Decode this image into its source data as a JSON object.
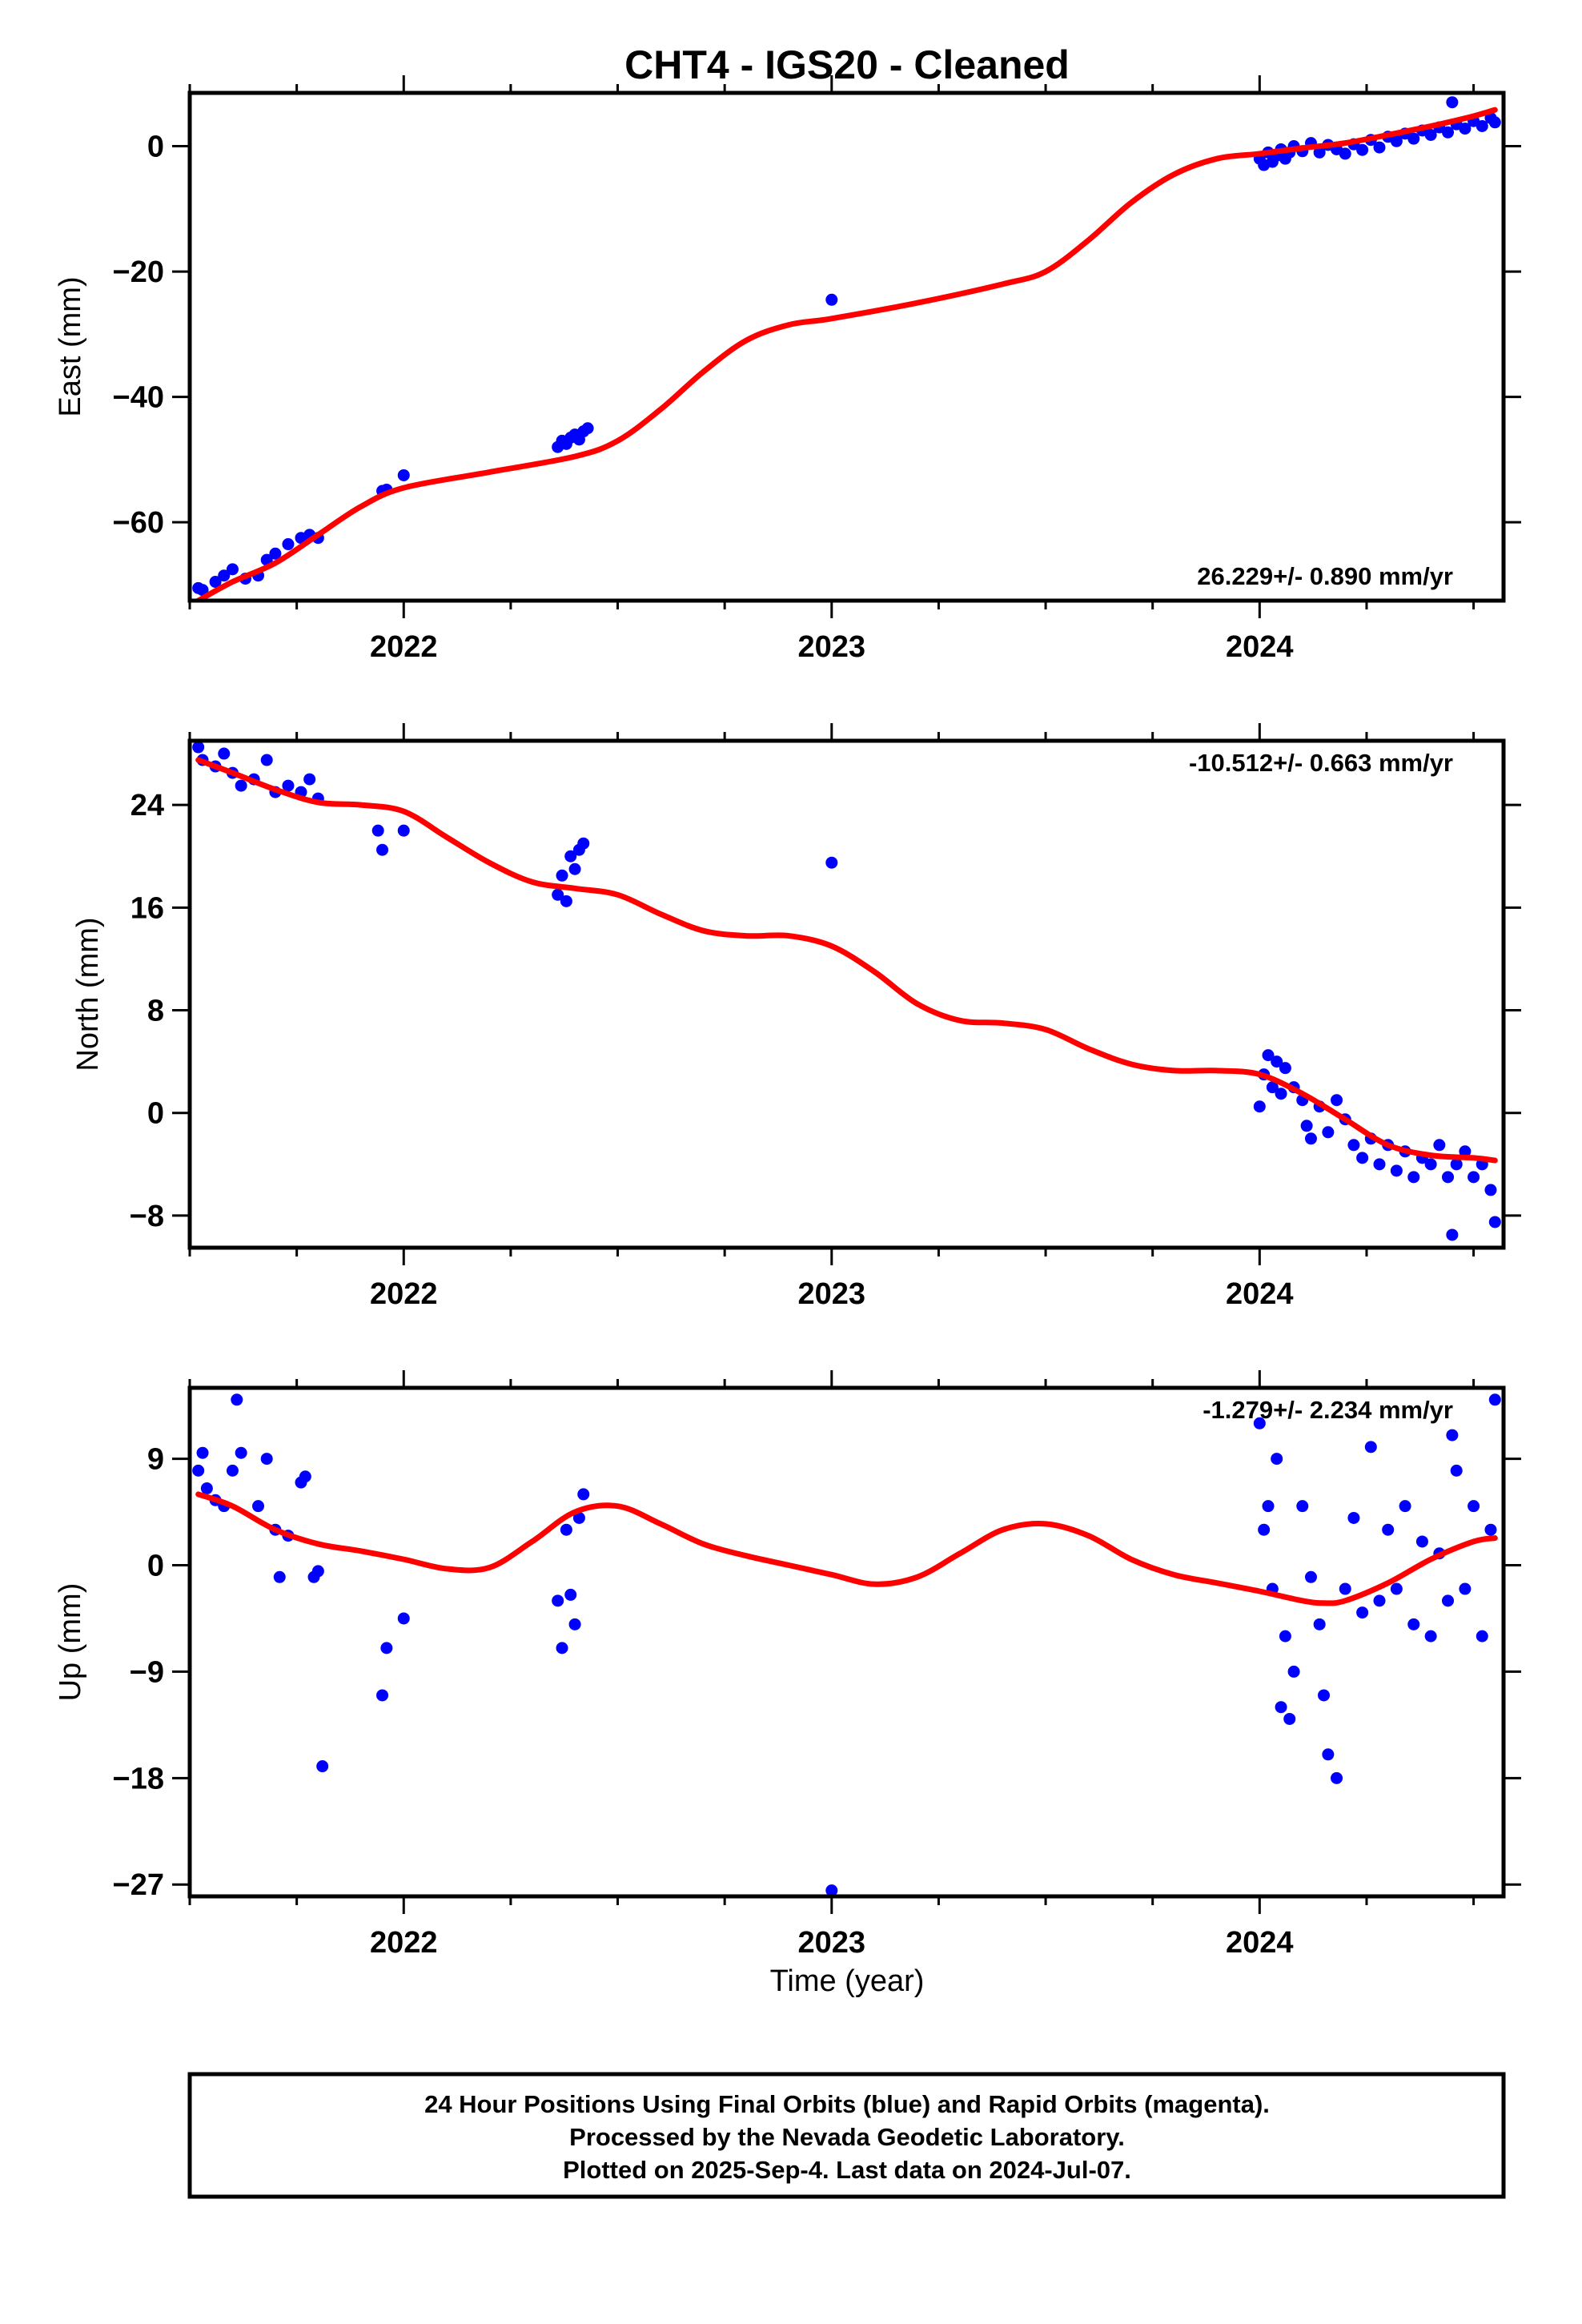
{
  "title": "CHT4  - IGS20 - Cleaned",
  "x_axis_label": "Time (year)",
  "footer": [
    "24 Hour Positions Using Final Orbits (blue) and Rapid Orbits (magenta).",
    "Processed by the Nevada Geodetic Laboratory.",
    "Plotted on 2025-Sep-4. Last data on 2024-Jul-07."
  ],
  "colors": {
    "points": "#0000ff",
    "fit": "#ff0000",
    "frame": "#000000"
  },
  "chart_data": [
    {
      "type": "scatter",
      "ylabel": "East (mm)",
      "rate": "26.229+/- 0.890 mm/yr",
      "xlim": [
        2021.5,
        2024.57
      ],
      "ylim": [
        -72.5,
        8.5
      ],
      "xticks": [
        2022,
        2023,
        2024
      ],
      "yticks": [
        0,
        -20,
        -40,
        -60
      ],
      "fit": [
        [
          2021.52,
          -72.5
        ],
        [
          2021.6,
          -69.5
        ],
        [
          2021.7,
          -66.5
        ],
        [
          2021.8,
          -62
        ],
        [
          2021.9,
          -57.5
        ],
        [
          2022.0,
          -54.5
        ],
        [
          2022.2,
          -52
        ],
        [
          2022.4,
          -49.5
        ],
        [
          2022.5,
          -47
        ],
        [
          2022.6,
          -42
        ],
        [
          2022.7,
          -36
        ],
        [
          2022.8,
          -31
        ],
        [
          2022.9,
          -28.5
        ],
        [
          2023.0,
          -27.5
        ],
        [
          2023.2,
          -25
        ],
        [
          2023.4,
          -22
        ],
        [
          2023.5,
          -20
        ],
        [
          2023.6,
          -15
        ],
        [
          2023.7,
          -9
        ],
        [
          2023.8,
          -4.5
        ],
        [
          2023.9,
          -2
        ],
        [
          2024.0,
          -1.2
        ],
        [
          2024.1,
          -0.3
        ],
        [
          2024.2,
          0.5
        ],
        [
          2024.3,
          1.8
        ],
        [
          2024.4,
          3.2
        ],
        [
          2024.5,
          4.8
        ],
        [
          2024.55,
          5.8
        ]
      ],
      "points": [
        [
          2021.52,
          -70.5
        ],
        [
          2021.53,
          -70.8
        ],
        [
          2021.56,
          -69.5
        ],
        [
          2021.58,
          -68.5
        ],
        [
          2021.6,
          -67.5
        ],
        [
          2021.63,
          -69
        ],
        [
          2021.66,
          -68.5
        ],
        [
          2021.68,
          -66
        ],
        [
          2021.7,
          -65
        ],
        [
          2021.73,
          -63.5
        ],
        [
          2021.76,
          -62.5
        ],
        [
          2021.78,
          -62
        ],
        [
          2021.8,
          -62.5
        ],
        [
          2021.95,
          -55
        ],
        [
          2021.96,
          -54.8
        ],
        [
          2022.0,
          -52.5
        ],
        [
          2022.36,
          -48
        ],
        [
          2022.37,
          -47
        ],
        [
          2022.38,
          -47.5
        ],
        [
          2022.39,
          -46.5
        ],
        [
          2022.4,
          -46
        ],
        [
          2022.41,
          -46.8
        ],
        [
          2022.42,
          -45.5
        ],
        [
          2022.43,
          -45
        ],
        [
          2023.0,
          -24.5
        ],
        [
          2024.0,
          -2
        ],
        [
          2024.01,
          -3
        ],
        [
          2024.02,
          -1
        ],
        [
          2024.03,
          -2.5
        ],
        [
          2024.04,
          -1.5
        ],
        [
          2024.05,
          -0.5
        ],
        [
          2024.06,
          -2
        ],
        [
          2024.07,
          -1
        ],
        [
          2024.08,
          0
        ],
        [
          2024.1,
          -0.8
        ],
        [
          2024.12,
          0.5
        ],
        [
          2024.14,
          -1
        ],
        [
          2024.16,
          0.2
        ],
        [
          2024.18,
          -0.5
        ],
        [
          2024.2,
          -1.2
        ],
        [
          2024.22,
          0.3
        ],
        [
          2024.24,
          -0.6
        ],
        [
          2024.26,
          1
        ],
        [
          2024.28,
          -0.2
        ],
        [
          2024.3,
          1.5
        ],
        [
          2024.32,
          0.8
        ],
        [
          2024.34,
          2
        ],
        [
          2024.36,
          1.2
        ],
        [
          2024.38,
          2.5
        ],
        [
          2024.4,
          1.8
        ],
        [
          2024.42,
          3
        ],
        [
          2024.44,
          2.2
        ],
        [
          2024.45,
          7
        ],
        [
          2024.46,
          3.5
        ],
        [
          2024.48,
          2.8
        ],
        [
          2024.5,
          4
        ],
        [
          2024.52,
          3.2
        ],
        [
          2024.54,
          4.5
        ],
        [
          2024.55,
          3.8
        ]
      ]
    },
    {
      "type": "scatter",
      "ylabel": "North (mm)",
      "rate": "-10.512+/- 0.663 mm/yr",
      "xlim": [
        2021.5,
        2024.57
      ],
      "ylim": [
        -10.5,
        29
      ],
      "xticks": [
        2022,
        2023,
        2024
      ],
      "yticks": [
        24,
        16,
        8,
        0,
        -8
      ],
      "fit": [
        [
          2021.52,
          27.5
        ],
        [
          2021.6,
          26.5
        ],
        [
          2021.7,
          25.2
        ],
        [
          2021.8,
          24.2
        ],
        [
          2021.9,
          24
        ],
        [
          2022.0,
          23.5
        ],
        [
          2022.1,
          21.5
        ],
        [
          2022.2,
          19.5
        ],
        [
          2022.3,
          18
        ],
        [
          2022.4,
          17.5
        ],
        [
          2022.5,
          17
        ],
        [
          2022.6,
          15.5
        ],
        [
          2022.7,
          14.2
        ],
        [
          2022.8,
          13.8
        ],
        [
          2022.9,
          13.8
        ],
        [
          2023.0,
          13
        ],
        [
          2023.1,
          11
        ],
        [
          2023.2,
          8.5
        ],
        [
          2023.3,
          7.2
        ],
        [
          2023.4,
          7
        ],
        [
          2023.5,
          6.5
        ],
        [
          2023.6,
          5
        ],
        [
          2023.7,
          3.8
        ],
        [
          2023.8,
          3.3
        ],
        [
          2023.9,
          3.3
        ],
        [
          2024.0,
          3
        ],
        [
          2024.1,
          1.5
        ],
        [
          2024.2,
          -0.5
        ],
        [
          2024.3,
          -2.5
        ],
        [
          2024.4,
          -3.3
        ],
        [
          2024.5,
          -3.5
        ],
        [
          2024.55,
          -3.7
        ]
      ],
      "points": [
        [
          2021.52,
          28.5
        ],
        [
          2021.53,
          27.5
        ],
        [
          2021.56,
          27
        ],
        [
          2021.58,
          28
        ],
        [
          2021.6,
          26.5
        ],
        [
          2021.62,
          25.5
        ],
        [
          2021.65,
          26
        ],
        [
          2021.68,
          27.5
        ],
        [
          2021.7,
          25
        ],
        [
          2021.73,
          25.5
        ],
        [
          2021.76,
          25
        ],
        [
          2021.78,
          26
        ],
        [
          2021.8,
          24.5
        ],
        [
          2021.94,
          22
        ],
        [
          2021.95,
          20.5
        ],
        [
          2022.0,
          22
        ],
        [
          2022.36,
          17
        ],
        [
          2022.37,
          18.5
        ],
        [
          2022.38,
          16.5
        ],
        [
          2022.39,
          20
        ],
        [
          2022.4,
          19
        ],
        [
          2022.41,
          20.5
        ],
        [
          2022.42,
          21
        ],
        [
          2023.0,
          19.5
        ],
        [
          2024.0,
          0.5
        ],
        [
          2024.01,
          3
        ],
        [
          2024.02,
          4.5
        ],
        [
          2024.03,
          2
        ],
        [
          2024.04,
          4
        ],
        [
          2024.05,
          1.5
        ],
        [
          2024.06,
          3.5
        ],
        [
          2024.08,
          2
        ],
        [
          2024.1,
          1
        ],
        [
          2024.11,
          -1
        ],
        [
          2024.12,
          -2
        ],
        [
          2024.14,
          0.5
        ],
        [
          2024.16,
          -1.5
        ],
        [
          2024.18,
          1
        ],
        [
          2024.2,
          -0.5
        ],
        [
          2024.22,
          -2.5
        ],
        [
          2024.24,
          -3.5
        ],
        [
          2024.26,
          -2
        ],
        [
          2024.28,
          -4
        ],
        [
          2024.3,
          -2.5
        ],
        [
          2024.32,
          -4.5
        ],
        [
          2024.34,
          -3
        ],
        [
          2024.36,
          -5
        ],
        [
          2024.38,
          -3.5
        ],
        [
          2024.4,
          -4
        ],
        [
          2024.42,
          -2.5
        ],
        [
          2024.44,
          -5
        ],
        [
          2024.45,
          -9.5
        ],
        [
          2024.46,
          -4
        ],
        [
          2024.48,
          -3
        ],
        [
          2024.5,
          -5
        ],
        [
          2024.52,
          -4
        ],
        [
          2024.54,
          -6
        ],
        [
          2024.55,
          -8.5
        ]
      ]
    },
    {
      "type": "scatter",
      "ylabel": "Up (mm)",
      "rate": "-1.279+/- 2.234 mm/yr",
      "xlim": [
        2021.5,
        2024.57
      ],
      "ylim": [
        -28,
        15
      ],
      "xticks": [
        2022,
        2023,
        2024
      ],
      "yticks": [
        9,
        0,
        -9,
        -18,
        -27
      ],
      "fit": [
        [
          2021.52,
          6
        ],
        [
          2021.6,
          5
        ],
        [
          2021.7,
          3
        ],
        [
          2021.8,
          1.8
        ],
        [
          2021.9,
          1.2
        ],
        [
          2022.0,
          0.5
        ],
        [
          2022.1,
          -0.3
        ],
        [
          2022.2,
          -0.2
        ],
        [
          2022.3,
          2
        ],
        [
          2022.4,
          4.5
        ],
        [
          2022.5,
          5
        ],
        [
          2022.6,
          3.5
        ],
        [
          2022.7,
          1.8
        ],
        [
          2022.8,
          0.8
        ],
        [
          2022.9,
          0
        ],
        [
          2023.0,
          -0.8
        ],
        [
          2023.1,
          -1.6
        ],
        [
          2023.2,
          -1
        ],
        [
          2023.3,
          1
        ],
        [
          2023.4,
          3
        ],
        [
          2023.5,
          3.5
        ],
        [
          2023.6,
          2.5
        ],
        [
          2023.7,
          0.5
        ],
        [
          2023.8,
          -0.8
        ],
        [
          2023.9,
          -1.5
        ],
        [
          2024.0,
          -2.2
        ],
        [
          2024.1,
          -3
        ],
        [
          2024.15,
          -3.2
        ],
        [
          2024.2,
          -3
        ],
        [
          2024.3,
          -1.5
        ],
        [
          2024.4,
          0.5
        ],
        [
          2024.5,
          2
        ],
        [
          2024.55,
          2.3
        ]
      ],
      "points": [
        [
          2021.52,
          8
        ],
        [
          2021.53,
          9.5
        ],
        [
          2021.54,
          6.5
        ],
        [
          2021.56,
          5.5
        ],
        [
          2021.58,
          5
        ],
        [
          2021.6,
          8
        ],
        [
          2021.61,
          14
        ],
        [
          2021.62,
          9.5
        ],
        [
          2021.66,
          5
        ],
        [
          2021.68,
          9
        ],
        [
          2021.7,
          3
        ],
        [
          2021.71,
          -1
        ],
        [
          2021.73,
          2.5
        ],
        [
          2021.76,
          7
        ],
        [
          2021.77,
          7.5
        ],
        [
          2021.79,
          -1
        ],
        [
          2021.8,
          -0.5
        ],
        [
          2021.81,
          -17
        ],
        [
          2021.95,
          -11
        ],
        [
          2021.96,
          -7
        ],
        [
          2022.0,
          -4.5
        ],
        [
          2022.36,
          -3
        ],
        [
          2022.37,
          -7
        ],
        [
          2022.38,
          3
        ],
        [
          2022.39,
          -2.5
        ],
        [
          2022.4,
          -5
        ],
        [
          2022.41,
          4
        ],
        [
          2022.42,
          6
        ],
        [
          2023.0,
          -27.5
        ],
        [
          2024.0,
          12
        ],
        [
          2024.01,
          3
        ],
        [
          2024.02,
          5
        ],
        [
          2024.03,
          -2
        ],
        [
          2024.04,
          9
        ],
        [
          2024.05,
          -12
        ],
        [
          2024.06,
          -6
        ],
        [
          2024.07,
          -13
        ],
        [
          2024.08,
          -9
        ],
        [
          2024.1,
          5
        ],
        [
          2024.12,
          -1
        ],
        [
          2024.14,
          -5
        ],
        [
          2024.15,
          -11
        ],
        [
          2024.16,
          -16
        ],
        [
          2024.18,
          -18
        ],
        [
          2024.2,
          -2
        ],
        [
          2024.22,
          4
        ],
        [
          2024.24,
          -4
        ],
        [
          2024.26,
          10
        ],
        [
          2024.28,
          -3
        ],
        [
          2024.3,
          3
        ],
        [
          2024.32,
          -2
        ],
        [
          2024.34,
          5
        ],
        [
          2024.36,
          -5
        ],
        [
          2024.38,
          2
        ],
        [
          2024.4,
          -6
        ],
        [
          2024.42,
          1
        ],
        [
          2024.44,
          -3
        ],
        [
          2024.45,
          11
        ],
        [
          2024.46,
          8
        ],
        [
          2024.48,
          -2
        ],
        [
          2024.5,
          5
        ],
        [
          2024.52,
          -6
        ],
        [
          2024.54,
          3
        ],
        [
          2024.55,
          14
        ]
      ]
    }
  ]
}
